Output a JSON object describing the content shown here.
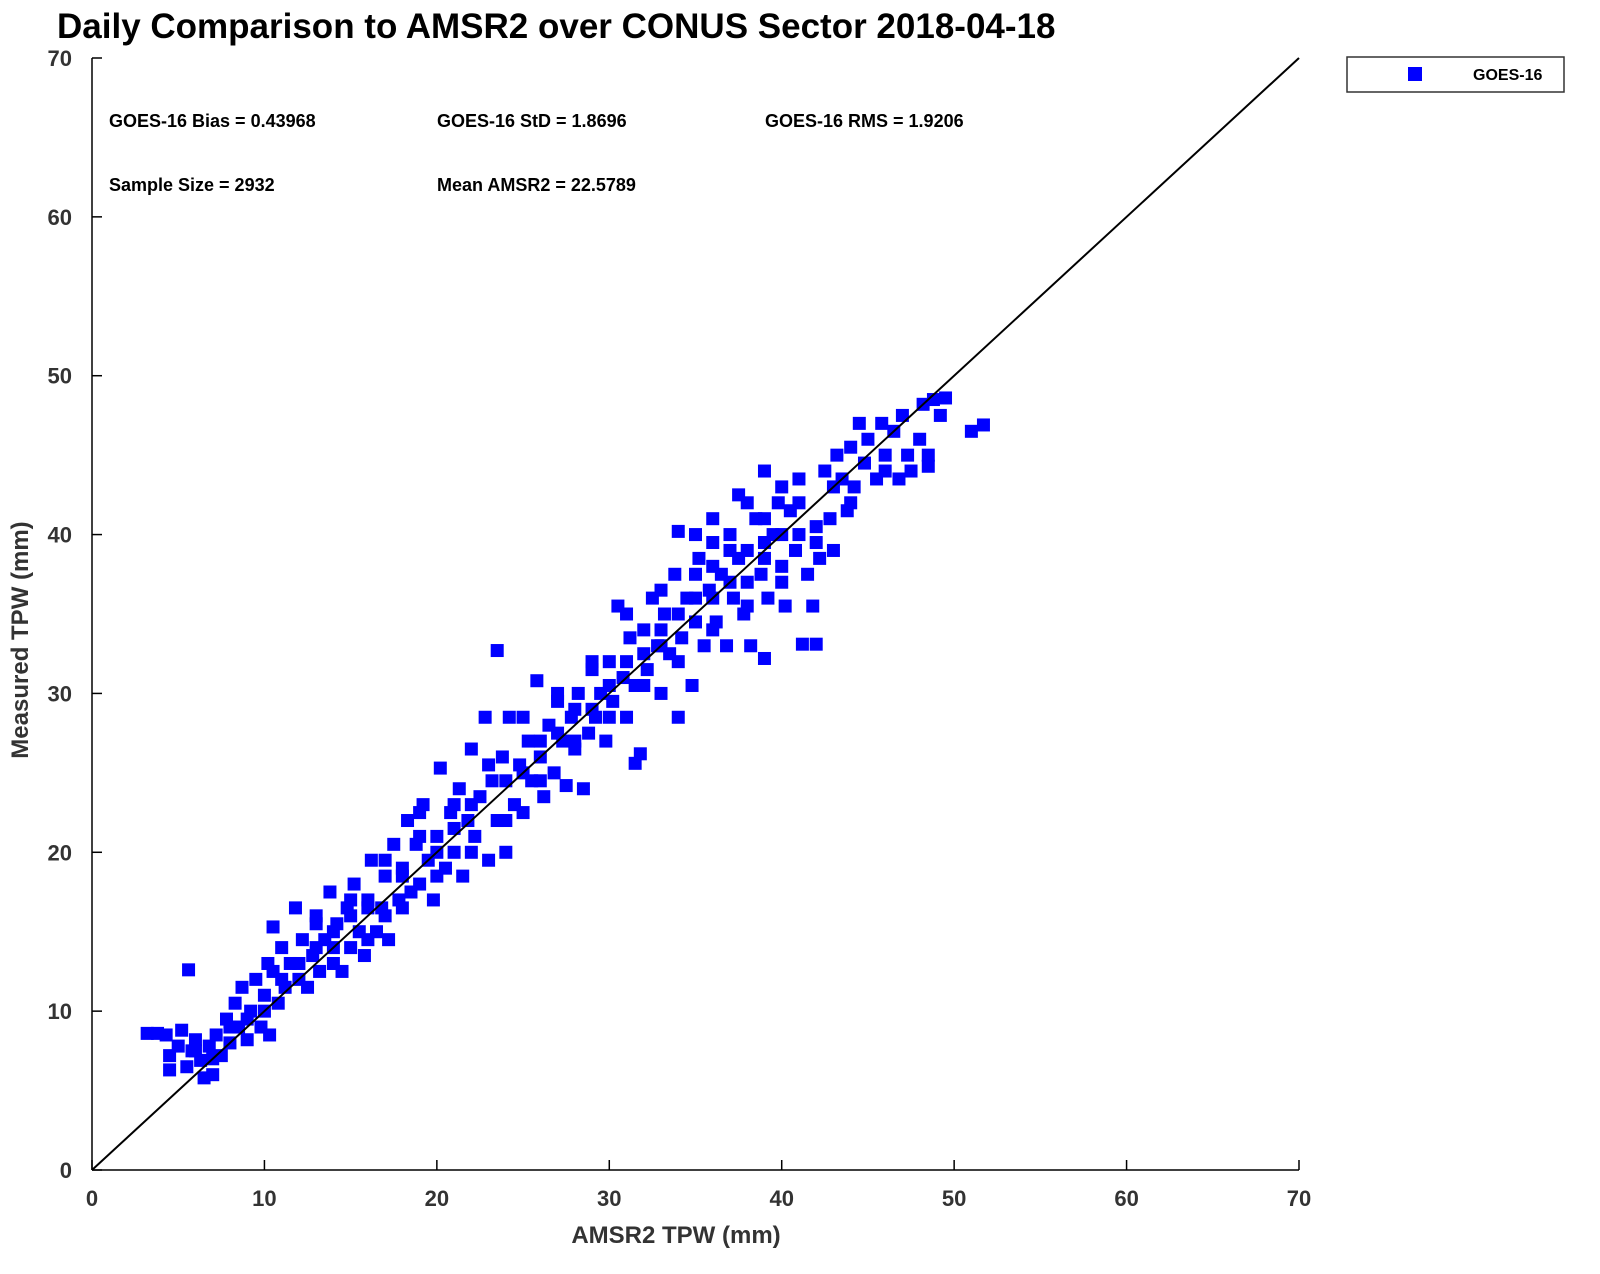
{
  "chart_data": {
    "type": "scatter",
    "title": "Daily Comparison to AMSR2 over CONUS Sector 2018-04-18",
    "xlabel": "AMSR2 TPW (mm)",
    "ylabel": "Measured TPW (mm)",
    "xlim": [
      0,
      70
    ],
    "ylim": [
      0,
      70
    ],
    "xticks": [
      "0",
      "10",
      "20",
      "30",
      "40",
      "50",
      "60",
      "70"
    ],
    "yticks": [
      "0",
      "10",
      "20",
      "30",
      "40",
      "50",
      "60",
      "70"
    ],
    "grid": false,
    "legend": {
      "placement": "top-right",
      "entries": [
        "GOES-16"
      ]
    },
    "reference_line": {
      "name": "1:1 line",
      "from": [
        0,
        0
      ],
      "to": [
        70,
        70
      ]
    },
    "stats": {
      "bias": "GOES-16 Bias = 0.43968",
      "std": "GOES-16 StD = 1.8696",
      "rms": "GOES-16 RMS = 1.9206",
      "sample": "Sample Size = 2932",
      "mean": "Mean AMSR2 = 22.5789"
    },
    "series": [
      {
        "name": "GOES-16",
        "color": "#0000ff",
        "marker": "square",
        "points": [
          [
            3.2,
            8.6
          ],
          [
            3.8,
            8.6
          ],
          [
            4.3,
            8.5
          ],
          [
            4.5,
            7.2
          ],
          [
            4.5,
            6.3
          ],
          [
            5,
            7.8
          ],
          [
            5.2,
            8.8
          ],
          [
            5.5,
            6.5
          ],
          [
            5.8,
            7.5
          ],
          [
            5.6,
            12.6
          ],
          [
            6,
            8.2
          ],
          [
            6.3,
            6.9
          ],
          [
            6.5,
            5.8
          ],
          [
            7,
            6
          ],
          [
            6.8,
            7.8
          ],
          [
            7.2,
            8.5
          ],
          [
            7.5,
            7.2
          ],
          [
            7.8,
            9.5
          ],
          [
            8,
            8
          ],
          [
            8.3,
            10.5
          ],
          [
            8.5,
            9
          ],
          [
            8.7,
            11.5
          ],
          [
            9,
            8.2
          ],
          [
            9.2,
            10
          ],
          [
            9.5,
            12
          ],
          [
            9.8,
            9
          ],
          [
            10,
            11
          ],
          [
            10.2,
            13
          ],
          [
            10.3,
            8.5
          ],
          [
            10.5,
            12.5
          ],
          [
            10.8,
            10.5
          ],
          [
            10.5,
            15.3
          ],
          [
            11,
            14
          ],
          [
            11.2,
            11.5
          ],
          [
            11.5,
            13
          ],
          [
            11.8,
            16.5
          ],
          [
            12,
            12
          ],
          [
            12.2,
            14.5
          ],
          [
            12.5,
            11.5
          ],
          [
            12.8,
            13.5
          ],
          [
            13,
            16
          ],
          [
            13.2,
            12.5
          ],
          [
            13.5,
            14.5
          ],
          [
            13.8,
            17.5
          ],
          [
            14,
            13
          ],
          [
            14.2,
            15.5
          ],
          [
            14.5,
            12.5
          ],
          [
            14.8,
            16.5
          ],
          [
            15,
            14
          ],
          [
            15.2,
            18
          ],
          [
            15.5,
            15
          ],
          [
            15.8,
            13.5
          ],
          [
            16,
            17
          ],
          [
            16.2,
            19.5
          ],
          [
            16.5,
            15
          ],
          [
            16.8,
            16.5
          ],
          [
            17,
            18.5
          ],
          [
            17.2,
            14.5
          ],
          [
            17.5,
            20.5
          ],
          [
            17.8,
            17
          ],
          [
            18,
            19
          ],
          [
            18.3,
            22
          ],
          [
            18.5,
            17.5
          ],
          [
            18.8,
            20.5
          ],
          [
            19,
            18
          ],
          [
            19.2,
            23
          ],
          [
            19.5,
            19.5
          ],
          [
            19.8,
            17
          ],
          [
            20,
            21
          ],
          [
            20.2,
            25.3
          ],
          [
            20.5,
            19
          ],
          [
            20.8,
            22.5
          ],
          [
            21,
            20
          ],
          [
            21.3,
            24
          ],
          [
            21.5,
            18.5
          ],
          [
            21.8,
            22
          ],
          [
            22,
            26.5
          ],
          [
            22.2,
            21
          ],
          [
            22.5,
            23.5
          ],
          [
            22.8,
            28.5
          ],
          [
            23,
            19.5
          ],
          [
            23.2,
            24.5
          ],
          [
            23.5,
            32.7
          ],
          [
            23.5,
            22
          ],
          [
            23.8,
            26
          ],
          [
            24,
            20
          ],
          [
            24.2,
            28.5
          ],
          [
            24.5,
            23
          ],
          [
            24.8,
            25.5
          ],
          [
            25,
            22.5
          ],
          [
            25.3,
            27
          ],
          [
            25.5,
            24.5
          ],
          [
            25.8,
            30.8
          ],
          [
            26,
            26
          ],
          [
            26.2,
            23.5
          ],
          [
            26.5,
            28
          ],
          [
            26.8,
            25
          ],
          [
            27,
            29.5
          ],
          [
            27.3,
            27
          ],
          [
            27.5,
            24.2
          ],
          [
            27.8,
            28.5
          ],
          [
            28,
            26.5
          ],
          [
            28.2,
            30
          ],
          [
            28.5,
            24
          ],
          [
            28.8,
            27.5
          ],
          [
            29,
            31.5
          ],
          [
            29.2,
            28.5
          ],
          [
            29.5,
            30
          ],
          [
            29.8,
            27
          ],
          [
            30,
            32
          ],
          [
            30.2,
            29.5
          ],
          [
            30.5,
            35.5
          ],
          [
            30.8,
            31
          ],
          [
            31,
            28.5
          ],
          [
            31.2,
            33.5
          ],
          [
            31.5,
            30.5
          ],
          [
            31.8,
            26.2
          ],
          [
            31.5,
            25.6
          ],
          [
            32,
            34
          ],
          [
            32.2,
            31.5
          ],
          [
            32.5,
            36
          ],
          [
            32.8,
            33
          ],
          [
            33,
            30
          ],
          [
            33.2,
            35
          ],
          [
            33.5,
            32.5
          ],
          [
            33.8,
            37.5
          ],
          [
            34,
            28.5
          ],
          [
            34,
            40.2
          ],
          [
            34.2,
            33.5
          ],
          [
            34.5,
            36
          ],
          [
            34.8,
            30.5
          ],
          [
            35,
            34.5
          ],
          [
            35.2,
            38.5
          ],
          [
            35.5,
            33
          ],
          [
            35.8,
            36.5
          ],
          [
            36,
            39.5
          ],
          [
            36.2,
            34.5
          ],
          [
            36.5,
            37.5
          ],
          [
            36.8,
            33
          ],
          [
            37,
            40
          ],
          [
            37.2,
            36
          ],
          [
            37.5,
            42.5
          ],
          [
            37.5,
            38.5
          ],
          [
            37.8,
            35
          ],
          [
            38,
            39
          ],
          [
            38.2,
            33
          ],
          [
            38.5,
            41
          ],
          [
            38.8,
            37.5
          ],
          [
            39,
            44
          ],
          [
            39,
            32.2
          ],
          [
            39.2,
            36
          ],
          [
            39.5,
            40
          ],
          [
            39.8,
            42
          ],
          [
            40,
            38
          ],
          [
            40.2,
            35.5
          ],
          [
            40.5,
            41.5
          ],
          [
            40.8,
            39
          ],
          [
            41,
            43.5
          ],
          [
            41.2,
            33.1
          ],
          [
            41.5,
            37.5
          ],
          [
            41.8,
            35.5
          ],
          [
            42,
            40.5
          ],
          [
            42,
            33.1
          ],
          [
            42.2,
            38.5
          ],
          [
            42.5,
            44
          ],
          [
            42.8,
            41
          ],
          [
            43,
            39
          ],
          [
            43.2,
            45
          ],
          [
            43.5,
            43.5
          ],
          [
            43.8,
            41.5
          ],
          [
            44,
            45.5
          ],
          [
            44.2,
            43
          ],
          [
            44.5,
            47
          ],
          [
            44.8,
            44.5
          ],
          [
            45,
            46
          ],
          [
            45.5,
            43.5
          ],
          [
            45.8,
            47
          ],
          [
            46,
            45
          ],
          [
            46.5,
            46.5
          ],
          [
            46.8,
            43.5
          ],
          [
            47,
            47.5
          ],
          [
            47.3,
            45
          ],
          [
            47.5,
            44
          ],
          [
            48,
            46
          ],
          [
            48.2,
            48.2
          ],
          [
            48.5,
            45
          ],
          [
            48.5,
            44.3
          ],
          [
            48.8,
            48.5
          ],
          [
            49.2,
            47.5
          ],
          [
            49.5,
            48.6
          ],
          [
            51,
            46.5
          ],
          [
            51.7,
            46.9
          ],
          [
            12,
            13
          ],
          [
            14,
            15
          ],
          [
            16,
            16.5
          ],
          [
            18,
            18.5
          ],
          [
            20,
            20
          ],
          [
            22,
            23
          ],
          [
            24,
            24.5
          ],
          [
            26,
            27
          ],
          [
            28,
            29
          ],
          [
            30,
            30.5
          ],
          [
            32,
            32.5
          ],
          [
            34,
            35
          ],
          [
            36,
            36
          ],
          [
            38,
            37
          ],
          [
            40,
            40
          ],
          [
            15,
            16
          ],
          [
            17,
            16
          ],
          [
            19,
            21
          ],
          [
            21,
            21.5
          ],
          [
            25,
            25
          ],
          [
            27,
            27.5
          ],
          [
            29,
            29
          ],
          [
            31,
            32
          ],
          [
            33,
            34
          ],
          [
            35,
            36
          ],
          [
            37,
            37
          ],
          [
            39,
            38.5
          ],
          [
            41,
            40
          ],
          [
            11,
            12
          ],
          [
            13,
            14
          ],
          [
            9,
            9.5
          ],
          [
            8,
            9
          ],
          [
            7,
            7
          ],
          [
            6,
            7.5
          ],
          [
            10,
            10
          ],
          [
            36,
            41
          ],
          [
            38,
            42
          ],
          [
            40,
            43
          ],
          [
            35,
            40
          ],
          [
            33,
            33
          ],
          [
            36,
            38
          ],
          [
            39,
            41
          ],
          [
            14,
            14
          ],
          [
            16,
            14.5
          ],
          [
            18,
            16.5
          ],
          [
            20,
            18.5
          ],
          [
            22,
            20
          ],
          [
            24,
            22
          ],
          [
            26,
            24.5
          ],
          [
            28,
            27
          ],
          [
            30,
            28.5
          ],
          [
            32,
            30.5
          ],
          [
            34,
            32
          ],
          [
            36,
            34
          ],
          [
            38,
            35.5
          ],
          [
            40,
            37
          ],
          [
            42,
            39.5
          ],
          [
            44,
            42
          ],
          [
            46,
            44
          ],
          [
            13,
            15.5
          ],
          [
            15,
            17
          ],
          [
            17,
            19.5
          ],
          [
            19,
            22.5
          ],
          [
            21,
            23
          ],
          [
            23,
            25.5
          ],
          [
            25,
            28.5
          ],
          [
            27,
            30
          ],
          [
            29,
            32
          ],
          [
            31,
            35
          ],
          [
            33,
            36.5
          ],
          [
            35,
            37.5
          ],
          [
            37,
            39
          ],
          [
            39,
            39.5
          ],
          [
            41,
            42
          ],
          [
            43,
            43
          ]
        ]
      }
    ]
  }
}
